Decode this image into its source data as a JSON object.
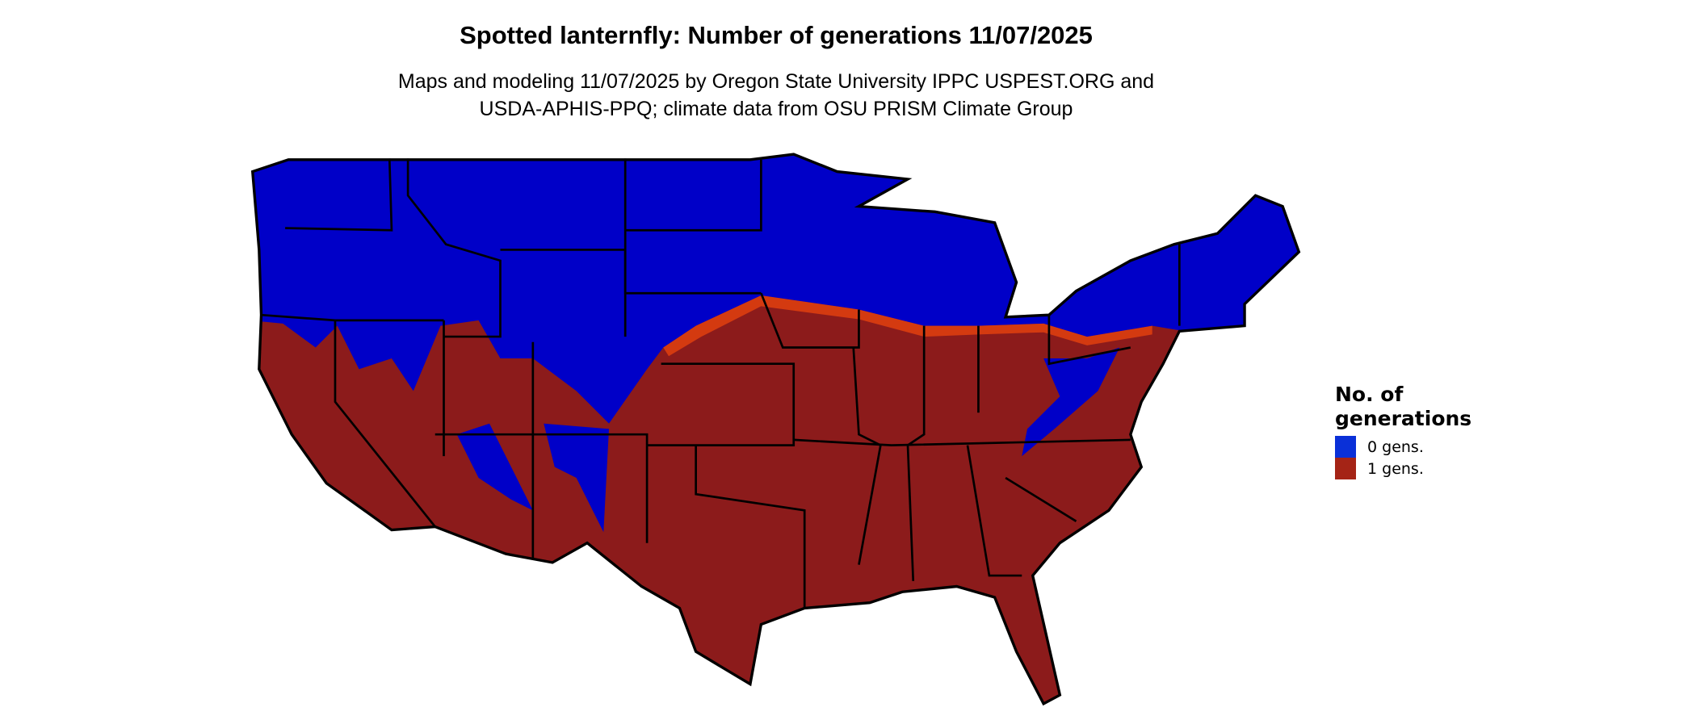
{
  "title": "Spotted lanternfly: Number of generations 11/07/2025",
  "subtitle_line1": "Maps and modeling 11/07/2025 by Oregon State University IPPC USPEST.ORG and",
  "subtitle_line2": "USDA-APHIS-PPQ; climate data from OSU PRISM Climate Group",
  "legend": {
    "title_line1": "No. of",
    "title_line2": "generations",
    "items": [
      {
        "label": "0 gens.",
        "color": "#0a30d8"
      },
      {
        "label": "1 gens.",
        "color": "#a52416"
      }
    ]
  },
  "colors": {
    "zero_gens_map": "#0000c8",
    "one_gen_map": "#8c1b1b",
    "transition": "#e0400e",
    "borders": "#000000"
  }
}
